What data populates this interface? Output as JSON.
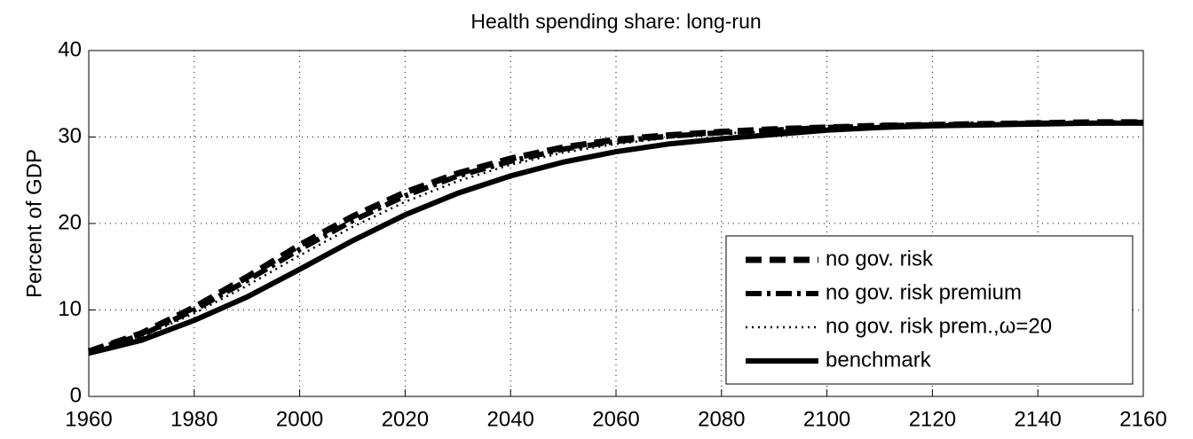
{
  "chart_data": {
    "type": "line",
    "title": "Health spending share: long-run",
    "y_label": "Percent of GDP",
    "x": [
      1960,
      1970,
      1980,
      1990,
      2000,
      2010,
      2020,
      2030,
      2040,
      2050,
      2060,
      2070,
      2080,
      2090,
      2100,
      2110,
      2120,
      2130,
      2140,
      2150,
      2160
    ],
    "series": [
      {
        "name": "no gov. risk",
        "color": "#000000",
        "dash": "dashed",
        "values": [
          5.2,
          7.3,
          10.3,
          13.8,
          17.5,
          20.8,
          23.6,
          25.8,
          27.5,
          28.8,
          29.7,
          30.2,
          30.6,
          30.9,
          31.1,
          31.3,
          31.4,
          31.5,
          31.6,
          31.7,
          31.7
        ]
      },
      {
        "name": "no gov. risk premium",
        "color": "#000000",
        "dash": "dashdot",
        "values": [
          5.2,
          7.1,
          10.0,
          13.4,
          17.0,
          20.3,
          23.2,
          25.5,
          27.2,
          28.6,
          29.5,
          30.1,
          30.5,
          30.8,
          31.1,
          31.3,
          31.4,
          31.5,
          31.6,
          31.6,
          31.7
        ]
      },
      {
        "name": "no gov. risk prem.,ω=20",
        "color": "#000000",
        "dash": "dotted",
        "values": [
          5.1,
          6.9,
          9.6,
          12.8,
          16.3,
          19.6,
          22.5,
          24.9,
          26.8,
          28.2,
          29.2,
          29.9,
          30.4,
          30.7,
          31.0,
          31.2,
          31.3,
          31.4,
          31.5,
          31.6,
          31.6
        ]
      },
      {
        "name": "benchmark",
        "color": "#000000",
        "dash": "solid",
        "values": [
          5.0,
          6.5,
          8.8,
          11.5,
          14.7,
          18.0,
          21.0,
          23.5,
          25.5,
          27.1,
          28.3,
          29.2,
          29.8,
          30.3,
          30.8,
          31.1,
          31.3,
          31.4,
          31.5,
          31.6,
          31.6
        ]
      }
    ],
    "xlim": [
      1960,
      2160
    ],
    "xticks": [
      1960,
      1980,
      2000,
      2020,
      2040,
      2060,
      2080,
      2100,
      2120,
      2140,
      2160
    ],
    "ylim": [
      0,
      40
    ],
    "yticks": [
      0,
      10,
      20,
      30,
      40
    ],
    "grid": true,
    "legend": "lower right"
  }
}
